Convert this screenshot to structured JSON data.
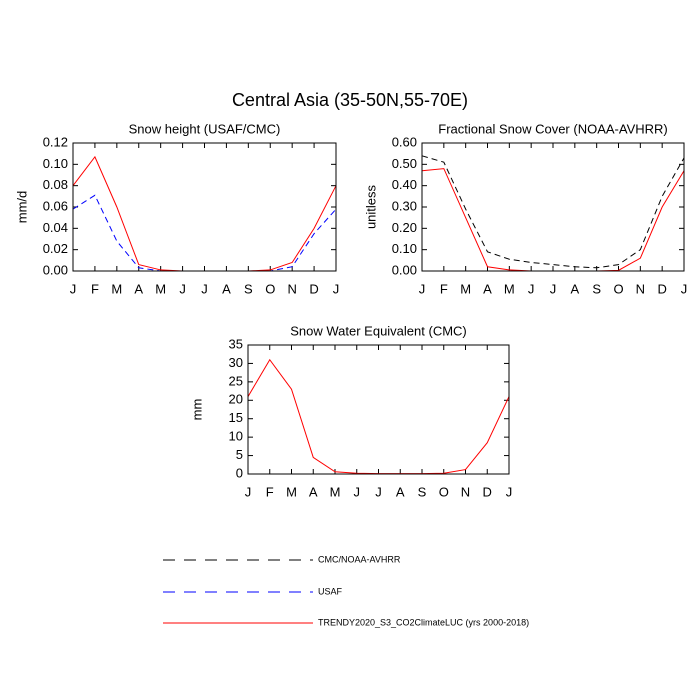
{
  "title": "Central Asia (35-50N,55-70E)",
  "chart_data": [
    {
      "type": "line",
      "title": "Snow height (USAF/CMC)",
      "y_label": "mm/d",
      "categories": [
        "J",
        "F",
        "M",
        "A",
        "M",
        "J",
        "J",
        "A",
        "S",
        "O",
        "N",
        "D",
        "J"
      ],
      "ylim": [
        0,
        0.12
      ],
      "yticks": [
        {
          "value": 0,
          "label": "0.00"
        },
        0.02,
        0.04,
        0.06,
        0.08,
        {
          "value": 0.1,
          "label": "0.10"
        },
        0.12
      ],
      "series": [
        {
          "name": "USAF",
          "color": "#0000ff",
          "dash": true,
          "values": [
            0.058,
            0.071,
            0.028,
            0.003,
            0,
            0,
            0,
            0,
            0,
            0,
            0.004,
            0.035,
            0.058
          ]
        },
        {
          "name": "TRENDY2020_S3_CO2ClimateLUC (yrs 2000-2018)",
          "color": "#ff0000",
          "dash": false,
          "values": [
            0.08,
            0.107,
            0.06,
            0.006,
            0.001,
            0,
            0,
            0,
            0,
            0.001,
            0.008,
            0.04,
            0.08
          ]
        }
      ]
    },
    {
      "type": "line",
      "title": "Fractional Snow Cover (NOAA-AVHRR)",
      "y_label": "unitless",
      "categories": [
        "J",
        "F",
        "M",
        "A",
        "M",
        "J",
        "J",
        "A",
        "S",
        "O",
        "N",
        "D",
        "J"
      ],
      "ylim": [
        0,
        0.6
      ],
      "yticks": [
        {
          "value": 0,
          "label": "0.00"
        },
        {
          "value": 0.1,
          "label": "0.10"
        },
        {
          "value": 0.2,
          "label": "0.20"
        },
        {
          "value": 0.3,
          "label": "0.30"
        },
        {
          "value": 0.4,
          "label": "0.40"
        },
        {
          "value": 0.5,
          "label": "0.50"
        },
        {
          "value": 0.6,
          "label": "0.60"
        }
      ],
      "series": [
        {
          "name": "CMC/NOAA-AVHRR",
          "color": "#000000",
          "dash": true,
          "values": [
            0.54,
            0.51,
            0.29,
            0.09,
            0.055,
            0.04,
            0.03,
            0.02,
            0.015,
            0.03,
            0.1,
            0.35,
            0.53
          ]
        },
        {
          "name": "TRENDY2020_S3_CO2ClimateLUC (yrs 2000-2018)",
          "color": "#ff0000",
          "dash": false,
          "values": [
            0.47,
            0.48,
            0.25,
            0.02,
            0.005,
            0,
            0,
            0,
            0,
            0.003,
            0.06,
            0.3,
            0.47
          ]
        }
      ]
    },
    {
      "type": "line",
      "title": "Snow Water Equivalent (CMC)",
      "y_label": "mm",
      "categories": [
        "J",
        "F",
        "M",
        "A",
        "M",
        "J",
        "J",
        "A",
        "S",
        "O",
        "N",
        "D",
        "J"
      ],
      "ylim": [
        0,
        35
      ],
      "yticks": [
        0,
        5,
        10,
        15,
        20,
        25,
        30,
        35
      ],
      "series": [
        {
          "name": "CMC/NOAA-AVHRR",
          "color": "#000000",
          "dash": true,
          "values": [
            0,
            0,
            0,
            0,
            0,
            0,
            0,
            0,
            0,
            0,
            0,
            0,
            0
          ]
        },
        {
          "name": "TRENDY2020_S3_CO2ClimateLUC (yrs 2000-2018)",
          "color": "#ff0000",
          "dash": false,
          "values": [
            21,
            31,
            23,
            4.5,
            0.6,
            0.2,
            0.1,
            0.1,
            0.1,
            0.2,
            1.2,
            8.5,
            21
          ]
        }
      ]
    }
  ]
}
